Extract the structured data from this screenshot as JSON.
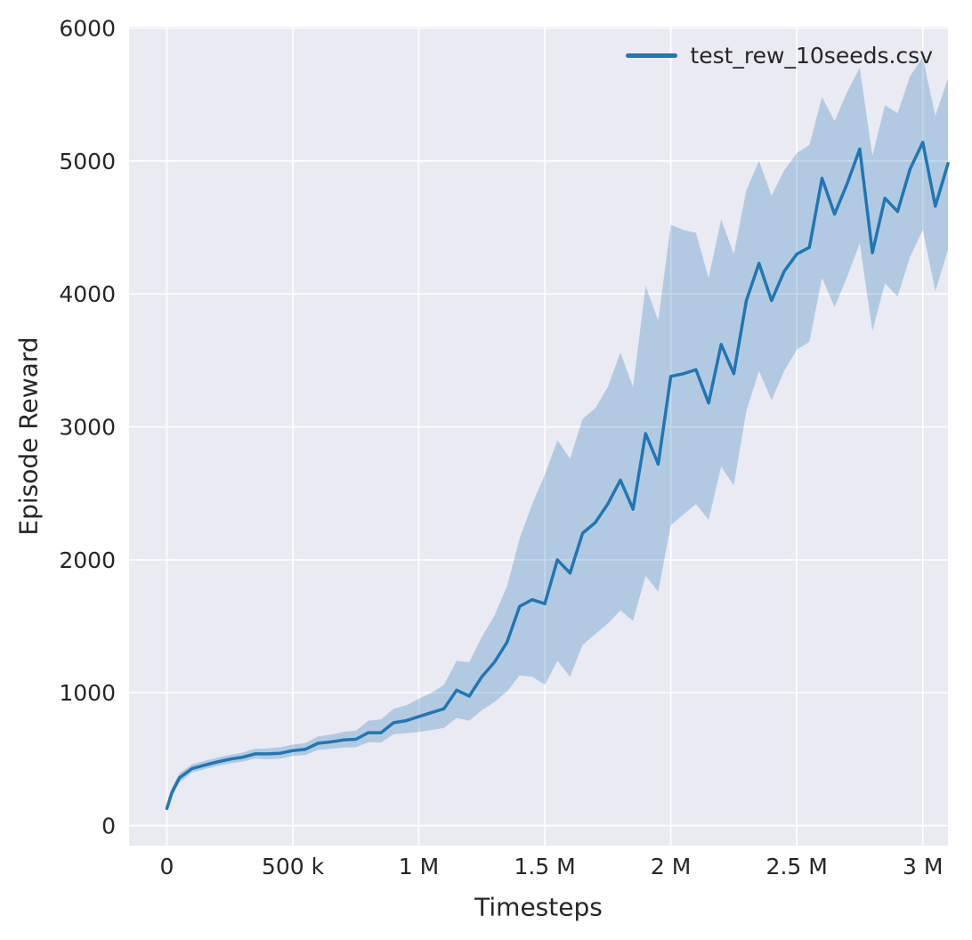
{
  "figure": {
    "background": "#ffffff",
    "plot_background": "#eaeaf2",
    "grid_color": "#ffffff",
    "tick_color": "#262626"
  },
  "chart_data": {
    "type": "line",
    "title": "",
    "xlabel": "Timesteps",
    "ylabel": "Episode Reward",
    "grid": true,
    "legend_position": "upper right",
    "legend": [
      {
        "label": "test_rew_10seeds.csv",
        "color": "#1f77b4"
      }
    ],
    "xlim": [
      -150000,
      3100000
    ],
    "ylim": [
      -150,
      6010
    ],
    "xticks": {
      "values": [
        0,
        500000,
        1000000,
        1500000,
        2000000,
        2500000,
        3000000
      ],
      "labels": [
        "0",
        "500 k",
        "1 M",
        "1.5 M",
        "2 M",
        "2.5 M",
        "3 M"
      ]
    },
    "yticks": {
      "values": [
        0,
        1000,
        2000,
        3000,
        4000,
        5000,
        6000
      ],
      "labels": [
        "0",
        "1000",
        "2000",
        "3000",
        "4000",
        "5000",
        "6000"
      ]
    },
    "series": [
      {
        "name": "test_rew_10seeds.csv",
        "color": "#1f77b4",
        "band_opacity": 0.27,
        "x": [
          0,
          20000,
          50000,
          100000,
          150000,
          200000,
          250000,
          300000,
          350000,
          400000,
          450000,
          500000,
          550000,
          600000,
          650000,
          700000,
          750000,
          800000,
          850000,
          900000,
          950000,
          1000000,
          1050000,
          1100000,
          1150000,
          1200000,
          1250000,
          1300000,
          1350000,
          1400000,
          1450000,
          1500000,
          1550000,
          1600000,
          1650000,
          1700000,
          1750000,
          1800000,
          1850000,
          1900000,
          1950000,
          2000000,
          2050000,
          2100000,
          2150000,
          2200000,
          2250000,
          2300000,
          2350000,
          2400000,
          2450000,
          2500000,
          2550000,
          2600000,
          2650000,
          2700000,
          2750000,
          2800000,
          2850000,
          2900000,
          2950000,
          3000000,
          3050000,
          3100000
        ],
        "mean": [
          130,
          250,
          360,
          430,
          455,
          480,
          500,
          515,
          540,
          540,
          545,
          565,
          575,
          620,
          630,
          645,
          650,
          700,
          700,
          775,
          790,
          820,
          850,
          880,
          1020,
          975,
          1120,
          1230,
          1380,
          1650,
          1700,
          1670,
          2000,
          1900,
          2200,
          2280,
          2420,
          2600,
          2380,
          2950,
          2720,
          3380,
          3400,
          3430,
          3180,
          3620,
          3400,
          3950,
          4230,
          3950,
          4170,
          4300,
          4350,
          4870,
          4600,
          4830,
          5090,
          4310,
          4720,
          4620,
          4940,
          5140,
          4660,
          4980
        ],
        "lower": [
          100,
          215,
          325,
          400,
          425,
          450,
          468,
          482,
          505,
          500,
          505,
          525,
          532,
          570,
          578,
          588,
          590,
          628,
          625,
          688,
          695,
          705,
          720,
          735,
          810,
          790,
          870,
          930,
          1010,
          1130,
          1120,
          1060,
          1240,
          1120,
          1360,
          1440,
          1520,
          1620,
          1540,
          1880,
          1760,
          2260,
          2340,
          2420,
          2300,
          2700,
          2560,
          3120,
          3420,
          3200,
          3420,
          3580,
          3640,
          4120,
          3900,
          4130,
          4380,
          3720,
          4080,
          3980,
          4280,
          4480,
          4020,
          4330
        ],
        "upper": [
          165,
          285,
          395,
          462,
          488,
          512,
          532,
          550,
          578,
          582,
          590,
          610,
          622,
          672,
          685,
          705,
          715,
          790,
          800,
          880,
          905,
          955,
          1000,
          1060,
          1240,
          1230,
          1420,
          1580,
          1800,
          2160,
          2420,
          2640,
          2900,
          2760,
          3060,
          3140,
          3300,
          3560,
          3300,
          4060,
          3800,
          4520,
          4480,
          4460,
          4120,
          4560,
          4300,
          4780,
          5000,
          4740,
          4930,
          5060,
          5120,
          5480,
          5300,
          5520,
          5700,
          5040,
          5420,
          5360,
          5640,
          5780,
          5340,
          5620
        ]
      }
    ]
  }
}
